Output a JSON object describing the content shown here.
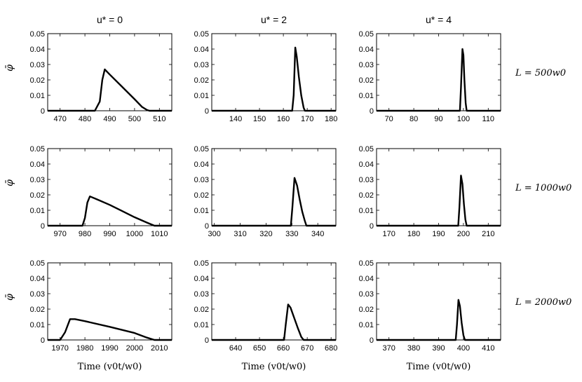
{
  "figure": {
    "column_titles": [
      "u* = 0",
      "u* = 2",
      "u* = 4"
    ],
    "row_labels": [
      "L = 500w0",
      "L = 1000w0",
      "L = 2000w0"
    ],
    "x_label": "Time (v0t/w0)",
    "y_label": "φ̄"
  },
  "chart_data": [
    {
      "type": "line",
      "title": "u* = 0",
      "row_label": "L = 500w0",
      "xlim": [
        465,
        515
      ],
      "ylim": [
        0,
        0.05
      ],
      "xticks": [
        470,
        480,
        490,
        500,
        510
      ],
      "yticks": [
        0,
        0.01,
        0.02,
        0.03,
        0.04,
        0.05
      ],
      "x": [
        465,
        484,
        486,
        487,
        488,
        490,
        495,
        500,
        503,
        505,
        506,
        515
      ],
      "y": [
        0,
        0,
        0.006,
        0.02,
        0.0268,
        0.0235,
        0.0155,
        0.0075,
        0.0025,
        0.0005,
        0,
        0
      ]
    },
    {
      "type": "line",
      "title": "u* = 2",
      "row_label": "L = 500w0",
      "xlim": [
        130,
        182
      ],
      "ylim": [
        0,
        0.05
      ],
      "xticks": [
        140,
        150,
        160,
        170,
        180
      ],
      "yticks": [
        0,
        0.01,
        0.02,
        0.03,
        0.04,
        0.05
      ],
      "x": [
        130,
        163.7,
        164.3,
        165,
        165.6,
        166.5,
        167.5,
        168.5,
        169,
        182
      ],
      "y": [
        0,
        0,
        0.01,
        0.041,
        0.035,
        0.022,
        0.01,
        0.002,
        0,
        0
      ]
    },
    {
      "type": "line",
      "title": "u* = 4",
      "row_label": "L = 500w0",
      "xlim": [
        65,
        115
      ],
      "ylim": [
        0,
        0.05
      ],
      "xticks": [
        70,
        80,
        90,
        100,
        110
      ],
      "yticks": [
        0,
        0.01,
        0.02,
        0.03,
        0.04,
        0.05
      ],
      "x": [
        65,
        98.6,
        99,
        99.6,
        100,
        100.4,
        100.9,
        101.3,
        115
      ],
      "y": [
        0,
        0,
        0.015,
        0.04,
        0.036,
        0.02,
        0.005,
        0,
        0
      ]
    },
    {
      "type": "line",
      "title": "u* = 0",
      "row_label": "L = 1000w0",
      "xlim": [
        965,
        1015
      ],
      "ylim": [
        0,
        0.05
      ],
      "xticks": [
        970,
        980,
        990,
        1000,
        1010
      ],
      "yticks": [
        0,
        0.01,
        0.02,
        0.03,
        0.04,
        0.05
      ],
      "x": [
        965,
        979,
        980,
        981,
        982,
        985,
        990,
        995,
        1000,
        1005,
        1008,
        1015
      ],
      "y": [
        0,
        0,
        0.005,
        0.015,
        0.019,
        0.017,
        0.0135,
        0.0095,
        0.0055,
        0.002,
        0,
        0
      ]
    },
    {
      "type": "line",
      "title": "u* = 2",
      "row_label": "L = 1000w0",
      "xlim": [
        299,
        347
      ],
      "ylim": [
        0,
        0.05
      ],
      "xticks": [
        300,
        310,
        320,
        330,
        340
      ],
      "yticks": [
        0,
        0.01,
        0.02,
        0.03,
        0.04,
        0.05
      ],
      "x": [
        299,
        329.6,
        330.2,
        331,
        332,
        333,
        334,
        335,
        335.6,
        347
      ],
      "y": [
        0,
        0,
        0.012,
        0.031,
        0.026,
        0.017,
        0.009,
        0.003,
        0,
        0
      ]
    },
    {
      "type": "line",
      "title": "u* = 4",
      "row_label": "L = 1000w0",
      "xlim": [
        165,
        215
      ],
      "ylim": [
        0,
        0.05
      ],
      "xticks": [
        170,
        180,
        190,
        200,
        210
      ],
      "yticks": [
        0,
        0.01,
        0.02,
        0.03,
        0.04,
        0.05
      ],
      "x": [
        165,
        197.9,
        198.4,
        199,
        199.6,
        200.2,
        200.8,
        201.3,
        215
      ],
      "y": [
        0,
        0,
        0.012,
        0.0325,
        0.027,
        0.014,
        0.004,
        0,
        0
      ]
    },
    {
      "type": "line",
      "title": "u* = 0",
      "row_label": "L = 2000w0",
      "xlim": [
        1965,
        2015
      ],
      "ylim": [
        0,
        0.05
      ],
      "xticks": [
        1970,
        1980,
        1990,
        2000,
        2010
      ],
      "yticks": [
        0,
        0.01,
        0.02,
        0.03,
        0.04,
        0.05
      ],
      "x": [
        1965,
        1970,
        1972,
        1974,
        1976,
        1980,
        1990,
        2000,
        2005,
        2008,
        2015
      ],
      "y": [
        0,
        0,
        0.005,
        0.0135,
        0.0135,
        0.0122,
        0.0085,
        0.0045,
        0.0015,
        0,
        0
      ]
    },
    {
      "type": "line",
      "title": "u* = 2",
      "row_label": "L = 2000w0",
      "xlim": [
        630,
        682
      ],
      "ylim": [
        0,
        0.05
      ],
      "xticks": [
        640,
        650,
        660,
        670,
        680
      ],
      "yticks": [
        0,
        0.01,
        0.02,
        0.03,
        0.04,
        0.05
      ],
      "x": [
        630,
        660.3,
        661,
        662,
        663,
        664.5,
        666,
        667.5,
        668.5,
        682
      ],
      "y": [
        0,
        0,
        0.01,
        0.023,
        0.021,
        0.0145,
        0.008,
        0.002,
        0,
        0
      ]
    },
    {
      "type": "line",
      "title": "u* = 4",
      "row_label": "L = 2000w0",
      "xlim": [
        365,
        415
      ],
      "ylim": [
        0,
        0.05
      ],
      "xticks": [
        370,
        380,
        390,
        400,
        410
      ],
      "yticks": [
        0,
        0.01,
        0.02,
        0.03,
        0.04,
        0.05
      ],
      "x": [
        365,
        396.9,
        397.4,
        398,
        398.6,
        399.3,
        400,
        400.6,
        415
      ],
      "y": [
        0,
        0,
        0.01,
        0.026,
        0.022,
        0.011,
        0.003,
        0,
        0
      ]
    }
  ]
}
